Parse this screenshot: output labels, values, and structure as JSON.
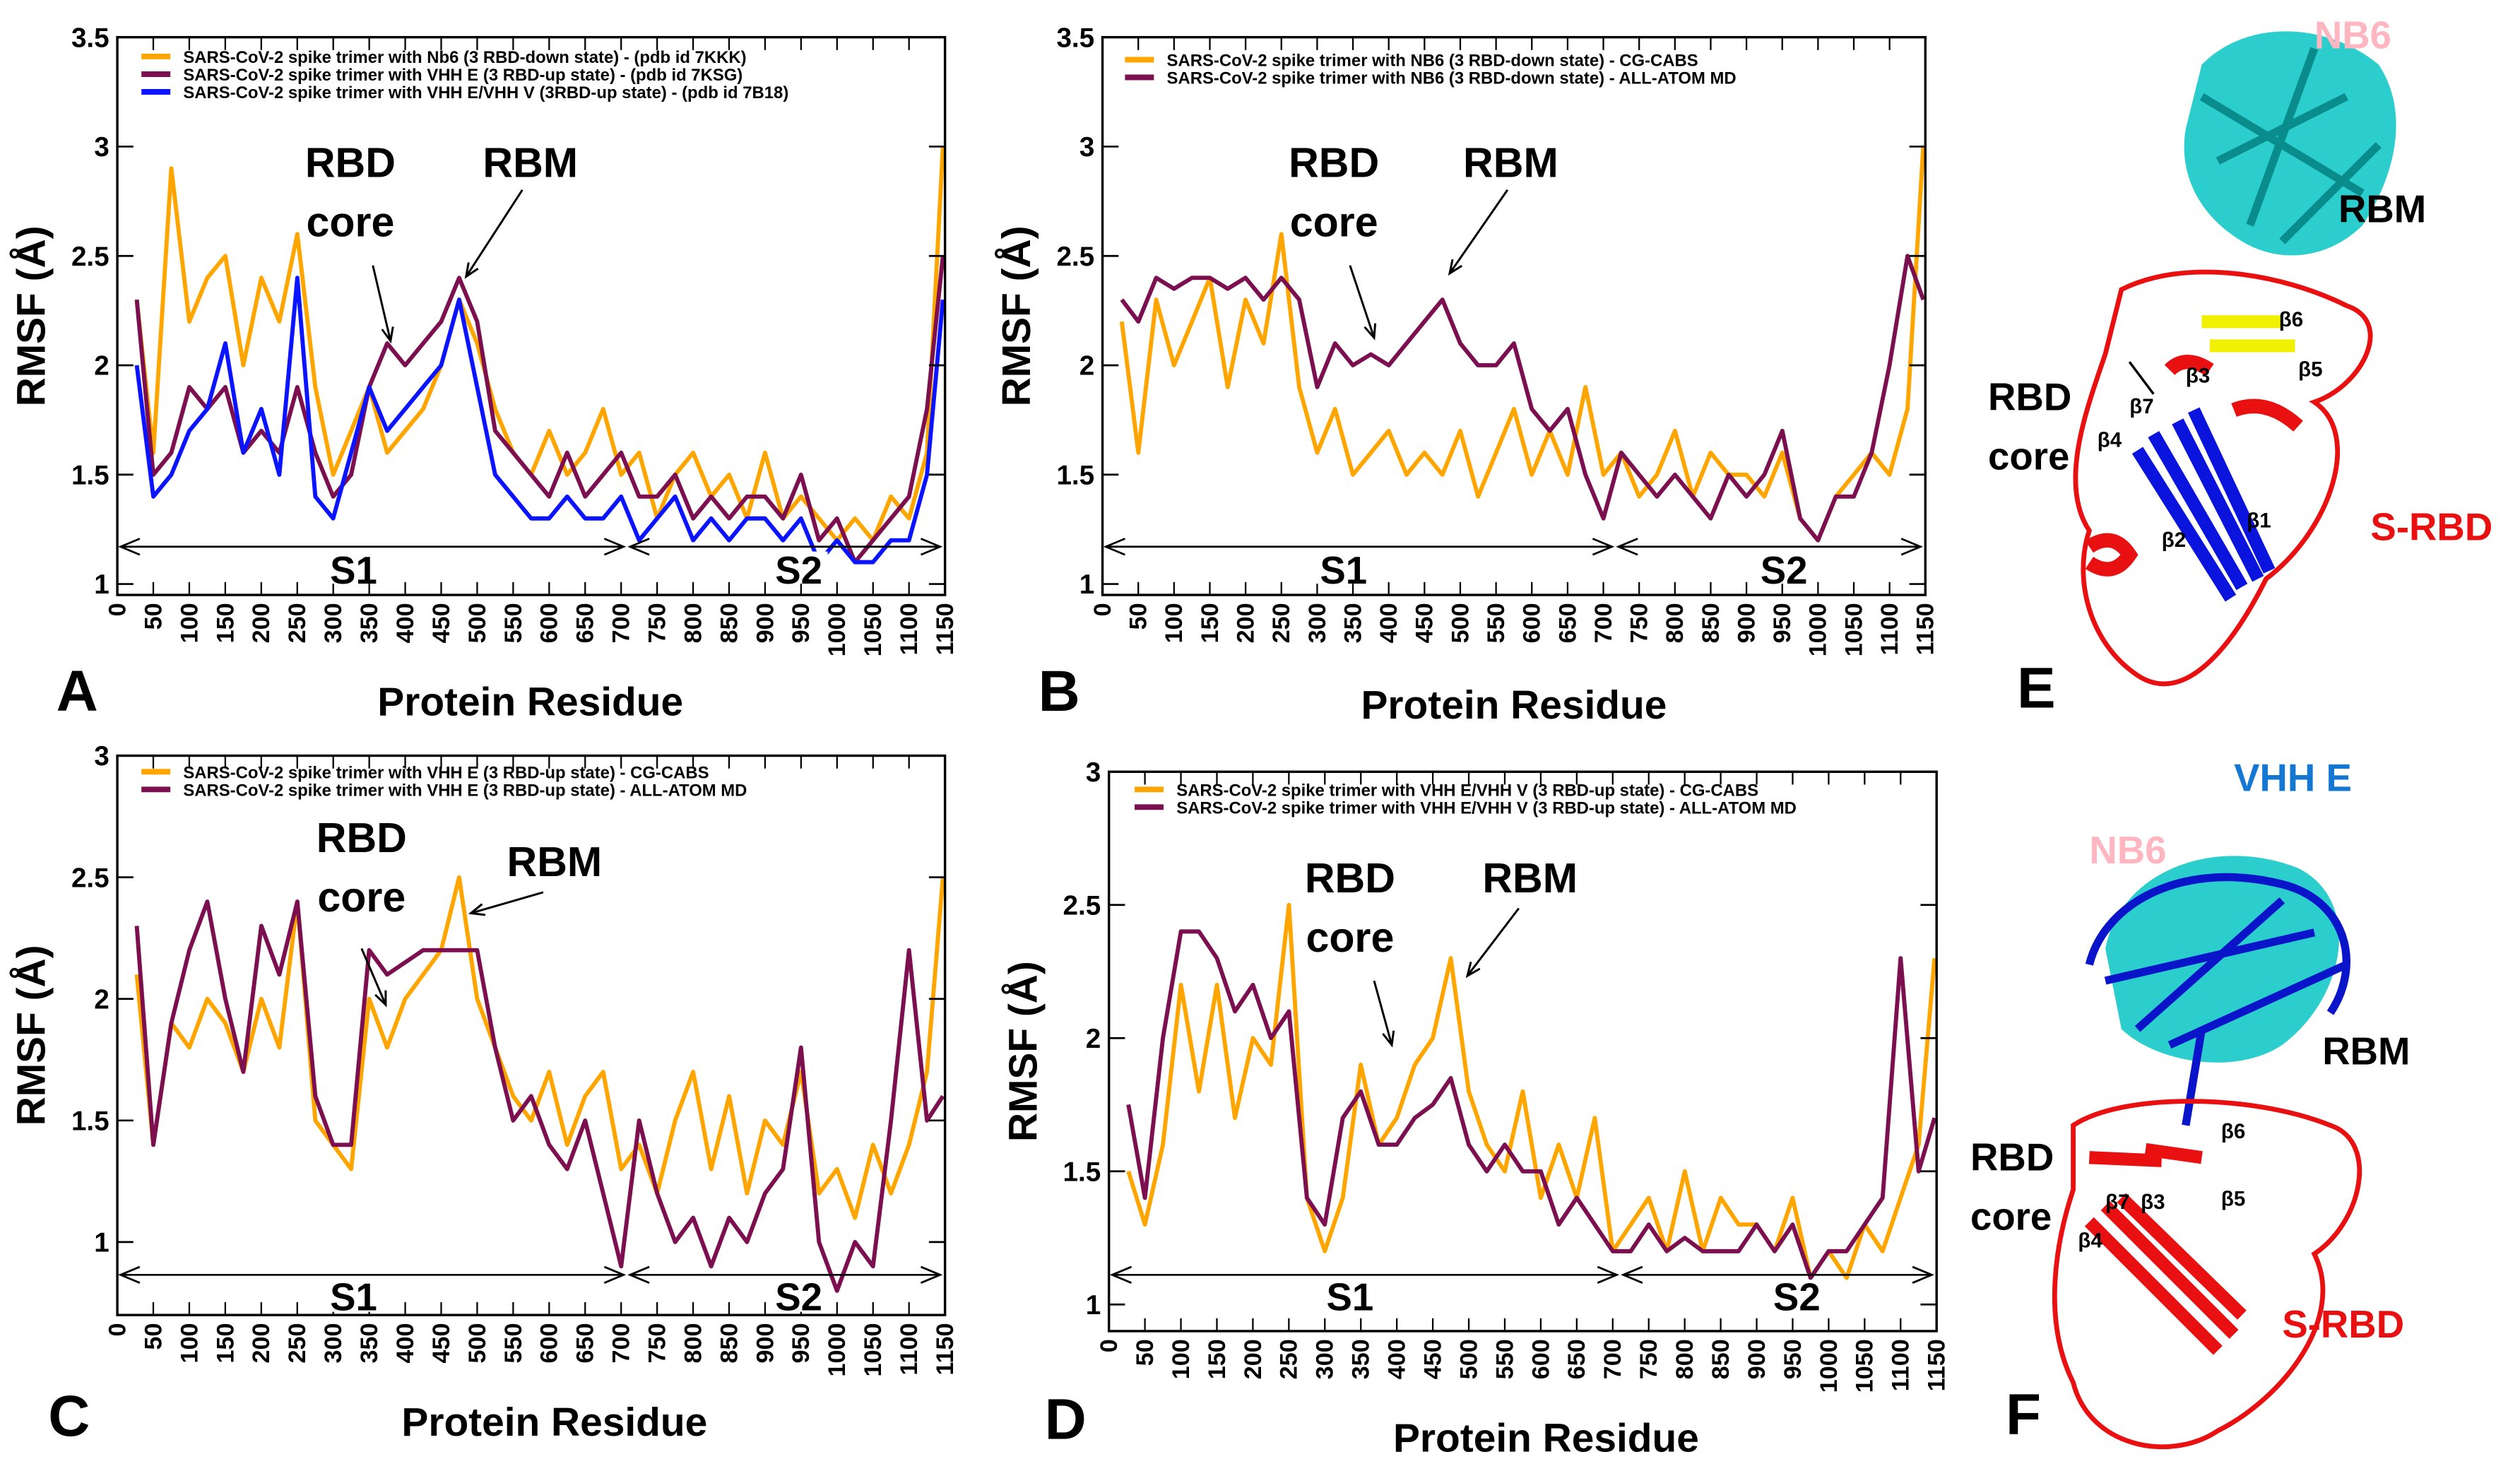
{
  "colors": {
    "orange": "#FFA500",
    "purple": "#7B0F4F",
    "blue": "#0A14FF",
    "red": "#E81010",
    "cyan": "#14C8C8",
    "pink": "#FFB6C1",
    "vhh": "#1478D2",
    "yellow": "#F0F000"
  },
  "chart_data": [
    {
      "panel": "A",
      "type": "line",
      "xlabel": "Protein Residue",
      "ylabel": "RMSF (Å)",
      "xlim": [
        0,
        1150
      ],
      "ylim": [
        0.95,
        3.5
      ],
      "xticks": [
        "0",
        "50",
        "100",
        "150",
        "200",
        "250",
        "300",
        "350",
        "400",
        "450",
        "500",
        "550",
        "600",
        "650",
        "700",
        "750",
        "800",
        "850",
        "900",
        "950",
        "1000",
        "1050",
        "1100",
        "1150"
      ],
      "yticks": [
        "1",
        "1.5",
        "2",
        "2.5",
        "3",
        "3.5"
      ],
      "annotations": {
        "rbd_core_1": "RBD",
        "rbd_core_2": "core",
        "rbm": "RBM",
        "s1": "S1",
        "s2": "S2"
      },
      "x": [
        27,
        50,
        75,
        100,
        125,
        150,
        175,
        200,
        225,
        250,
        275,
        300,
        325,
        350,
        375,
        400,
        425,
        450,
        475,
        500,
        525,
        550,
        575,
        600,
        625,
        650,
        675,
        700,
        725,
        750,
        775,
        800,
        825,
        850,
        875,
        900,
        925,
        950,
        975,
        1000,
        1025,
        1050,
        1075,
        1100,
        1125,
        1147
      ],
      "series": [
        {
          "name": "SARS-CoV-2 spike trimer with Nb6 (3 RBD-down  state) - (pdb id 7KKK)",
          "color": "orange",
          "values": [
            2.3,
            1.6,
            2.9,
            2.2,
            2.4,
            2.5,
            2.0,
            2.4,
            2.2,
            2.6,
            1.9,
            1.5,
            1.7,
            1.9,
            1.6,
            1.7,
            1.8,
            2.0,
            2.3,
            2.1,
            1.8,
            1.6,
            1.5,
            1.7,
            1.5,
            1.6,
            1.8,
            1.5,
            1.6,
            1.3,
            1.5,
            1.6,
            1.4,
            1.5,
            1.3,
            1.6,
            1.3,
            1.4,
            1.3,
            1.2,
            1.3,
            1.2,
            1.4,
            1.3,
            1.6,
            3.0
          ]
        },
        {
          "name": "SARS-CoV-2 spike trimer with VHH E (3 RBD-up state) - (pdb id 7KSG)",
          "color": "purple",
          "values": [
            2.3,
            1.5,
            1.6,
            1.9,
            1.8,
            1.9,
            1.6,
            1.7,
            1.6,
            1.9,
            1.6,
            1.4,
            1.5,
            1.9,
            2.1,
            2.0,
            2.1,
            2.2,
            2.4,
            2.2,
            1.7,
            1.6,
            1.5,
            1.4,
            1.6,
            1.4,
            1.5,
            1.6,
            1.4,
            1.4,
            1.5,
            1.3,
            1.4,
            1.3,
            1.4,
            1.4,
            1.3,
            1.5,
            1.2,
            1.3,
            1.1,
            1.2,
            1.3,
            1.4,
            1.8,
            2.5
          ]
        },
        {
          "name": "SARS-CoV-2 spike trimer with VHH E/VHH V (3RBD-up state) - (pdb id 7B18)",
          "color": "blue",
          "values": [
            2.0,
            1.4,
            1.5,
            1.7,
            1.8,
            2.1,
            1.6,
            1.8,
            1.5,
            2.4,
            1.4,
            1.3,
            1.6,
            1.9,
            1.7,
            1.8,
            1.9,
            2.0,
            2.3,
            1.9,
            1.5,
            1.4,
            1.3,
            1.3,
            1.4,
            1.3,
            1.3,
            1.4,
            1.2,
            1.3,
            1.4,
            1.2,
            1.3,
            1.2,
            1.3,
            1.3,
            1.2,
            1.3,
            1.1,
            1.2,
            1.1,
            1.1,
            1.2,
            1.2,
            1.5,
            2.3
          ]
        }
      ]
    },
    {
      "panel": "B",
      "type": "line",
      "xlabel": "Protein Residue",
      "ylabel": "RMSF (Å)",
      "xlim": [
        0,
        1150
      ],
      "ylim": [
        0.95,
        3.5
      ],
      "xticks": [
        "0",
        "50",
        "100",
        "150",
        "200",
        "250",
        "300",
        "350",
        "400",
        "450",
        "500",
        "550",
        "600",
        "650",
        "700",
        "750",
        "800",
        "850",
        "900",
        "950",
        "1000",
        "1050",
        "1100",
        "1150"
      ],
      "yticks": [
        "1",
        "1.5",
        "2",
        "2.5",
        "3",
        "3.5"
      ],
      "annotations": {
        "rbd_core_1": "RBD",
        "rbd_core_2": "core",
        "rbm": "RBM",
        "s1": "S1",
        "s2": "S2"
      },
      "x": [
        27,
        50,
        75,
        100,
        125,
        150,
        175,
        200,
        225,
        250,
        275,
        300,
        325,
        350,
        375,
        400,
        425,
        450,
        475,
        500,
        525,
        550,
        575,
        600,
        625,
        650,
        675,
        700,
        725,
        750,
        775,
        800,
        825,
        850,
        875,
        900,
        925,
        950,
        975,
        1000,
        1025,
        1050,
        1075,
        1100,
        1125,
        1147
      ],
      "series": [
        {
          "name": "SARS-CoV-2 spike trimer with NB6 (3 RBD-down  state) -  CG-CABS",
          "color": "orange",
          "values": [
            2.2,
            1.6,
            2.3,
            2.0,
            2.2,
            2.4,
            1.9,
            2.3,
            2.1,
            2.6,
            1.9,
            1.6,
            1.8,
            1.5,
            1.6,
            1.7,
            1.5,
            1.6,
            1.5,
            1.7,
            1.4,
            1.6,
            1.8,
            1.5,
            1.7,
            1.5,
            1.9,
            1.5,
            1.6,
            1.4,
            1.5,
            1.7,
            1.4,
            1.6,
            1.5,
            1.5,
            1.4,
            1.6,
            1.3,
            1.2,
            1.4,
            1.5,
            1.6,
            1.5,
            1.8,
            3.0
          ]
        },
        {
          "name": "SARS-CoV-2 spike trimer with NB6 (3 RBD-down state) - ALL-ATOM MD",
          "color": "purple",
          "values": [
            2.3,
            2.2,
            2.4,
            2.35,
            2.4,
            2.4,
            2.35,
            2.4,
            2.3,
            2.4,
            2.3,
            1.9,
            2.1,
            2.0,
            2.05,
            2.0,
            2.1,
            2.2,
            2.3,
            2.1,
            2.0,
            2.0,
            2.1,
            1.8,
            1.7,
            1.8,
            1.5,
            1.3,
            1.6,
            1.5,
            1.4,
            1.5,
            1.4,
            1.3,
            1.5,
            1.4,
            1.5,
            1.7,
            1.3,
            1.2,
            1.4,
            1.4,
            1.6,
            2.0,
            2.5,
            2.3
          ]
        }
      ]
    },
    {
      "panel": "C",
      "type": "line",
      "xlabel": "Protein Residue",
      "ylabel": "RMSF (Å)",
      "xlim": [
        0,
        1150
      ],
      "ylim": [
        0.7,
        3.0
      ],
      "xticks": [
        "0",
        "50",
        "100",
        "150",
        "200",
        "250",
        "300",
        "350",
        "400",
        "450",
        "500",
        "550",
        "600",
        "650",
        "700",
        "750",
        "800",
        "850",
        "900",
        "950",
        "1000",
        "1050",
        "1100",
        "1150"
      ],
      "yticks": [
        "1",
        "1.5",
        "2",
        "2.5",
        "3"
      ],
      "annotations": {
        "rbd_core_1": "RBD",
        "rbd_core_2": "core",
        "rbm": "RBM",
        "s1": "S1",
        "s2": "S2"
      },
      "x": [
        27,
        50,
        75,
        100,
        125,
        150,
        175,
        200,
        225,
        250,
        275,
        300,
        325,
        350,
        375,
        400,
        425,
        450,
        475,
        500,
        525,
        550,
        575,
        600,
        625,
        650,
        675,
        700,
        725,
        750,
        775,
        800,
        825,
        850,
        875,
        900,
        925,
        950,
        975,
        1000,
        1025,
        1050,
        1075,
        1100,
        1125,
        1147
      ],
      "series": [
        {
          "name": "SARS-CoV-2 spike trimer with VHH E (3 RBD-up  state) -  CG-CABS",
          "color": "orange",
          "values": [
            2.1,
            1.4,
            1.9,
            1.8,
            2.0,
            1.9,
            1.7,
            2.0,
            1.8,
            2.4,
            1.5,
            1.4,
            1.3,
            2.0,
            1.8,
            2.0,
            2.1,
            2.2,
            2.5,
            2.0,
            1.8,
            1.6,
            1.5,
            1.7,
            1.4,
            1.6,
            1.7,
            1.3,
            1.4,
            1.2,
            1.5,
            1.7,
            1.3,
            1.6,
            1.2,
            1.5,
            1.4,
            1.7,
            1.2,
            1.3,
            1.1,
            1.4,
            1.2,
            1.4,
            1.7,
            2.5
          ]
        },
        {
          "name": "SARS-CoV-2 spike trimer with VHH E (3 RBD-up state) - ALL-ATOM MD",
          "color": "purple",
          "values": [
            2.3,
            1.4,
            1.9,
            2.2,
            2.4,
            2.0,
            1.7,
            2.3,
            2.1,
            2.4,
            1.6,
            1.4,
            1.4,
            2.2,
            2.1,
            2.15,
            2.2,
            2.2,
            2.2,
            2.2,
            1.8,
            1.5,
            1.6,
            1.4,
            1.3,
            1.5,
            1.2,
            0.9,
            1.5,
            1.2,
            1.0,
            1.1,
            0.9,
            1.1,
            1.0,
            1.2,
            1.3,
            1.8,
            1.0,
            0.8,
            1.0,
            0.9,
            1.5,
            2.2,
            1.5,
            1.6
          ]
        }
      ]
    },
    {
      "panel": "D",
      "type": "line",
      "xlabel": "Protein Residue",
      "ylabel": "RMSF (Å)",
      "xlim": [
        0,
        1150
      ],
      "ylim": [
        0.9,
        3.0
      ],
      "xticks": [
        "0",
        "50",
        "100",
        "150",
        "200",
        "250",
        "300",
        "350",
        "400",
        "450",
        "500",
        "550",
        "600",
        "650",
        "700",
        "750",
        "800",
        "850",
        "900",
        "950",
        "1000",
        "1050",
        "1100",
        "1150"
      ],
      "yticks": [
        "1",
        "1.5",
        "2",
        "2.5",
        "3"
      ],
      "annotations": {
        "rbd_core_1": "RBD",
        "rbd_core_2": "core",
        "rbm": "RBM",
        "s1": "S1",
        "s2": "S2"
      },
      "x": [
        27,
        50,
        75,
        100,
        125,
        150,
        175,
        200,
        225,
        250,
        275,
        300,
        325,
        350,
        375,
        400,
        425,
        450,
        475,
        500,
        525,
        550,
        575,
        600,
        625,
        650,
        675,
        700,
        725,
        750,
        775,
        800,
        825,
        850,
        875,
        900,
        925,
        950,
        975,
        1000,
        1025,
        1050,
        1075,
        1100,
        1125,
        1147
      ],
      "series": [
        {
          "name": "SARS-CoV-2 spike trimer with VHH E/VHH V (3 RBD-up state) -  CG-CABS",
          "color": "orange",
          "values": [
            1.5,
            1.3,
            1.6,
            2.2,
            1.8,
            2.2,
            1.7,
            2.0,
            1.9,
            2.5,
            1.4,
            1.2,
            1.4,
            1.9,
            1.6,
            1.7,
            1.9,
            2.0,
            2.3,
            1.8,
            1.6,
            1.5,
            1.8,
            1.4,
            1.6,
            1.4,
            1.7,
            1.2,
            1.3,
            1.4,
            1.2,
            1.5,
            1.2,
            1.4,
            1.3,
            1.3,
            1.2,
            1.4,
            1.1,
            1.2,
            1.1,
            1.3,
            1.2,
            1.4,
            1.6,
            2.3
          ]
        },
        {
          "name": "SARS-CoV-2 spike trimer with VHH E/VHH V (3 RBD-up state) - ALL-ATOM MD",
          "color": "purple",
          "values": [
            1.75,
            1.4,
            2.0,
            2.4,
            2.4,
            2.3,
            2.1,
            2.2,
            2.0,
            2.1,
            1.4,
            1.3,
            1.7,
            1.8,
            1.6,
            1.6,
            1.7,
            1.75,
            1.85,
            1.6,
            1.5,
            1.6,
            1.5,
            1.5,
            1.3,
            1.4,
            1.3,
            1.2,
            1.2,
            1.3,
            1.2,
            1.25,
            1.2,
            1.2,
            1.2,
            1.3,
            1.2,
            1.3,
            1.1,
            1.2,
            1.2,
            1.3,
            1.4,
            2.3,
            1.5,
            1.7
          ]
        }
      ]
    }
  ],
  "panel_letters": [
    "A",
    "B",
    "C",
    "D",
    "E",
    "F"
  ],
  "structure_e": {
    "nb6": "NB6",
    "rbm": "RBM",
    "rbd_core_1": "RBD",
    "rbd_core_2": "core",
    "s_rbd": "S-RBD",
    "betas": [
      "β6",
      "β5",
      "β7",
      "β3",
      "β4",
      "β2",
      "β1"
    ]
  },
  "structure_f": {
    "vhh_e": "VHH E",
    "nb6": "NB6",
    "rbm": "RBM",
    "rbd_core_1": "RBD",
    "rbd_core_2": "core",
    "s_rbd": "S-RBD",
    "betas": [
      "β6",
      "β7",
      "β3",
      "β5",
      "β4"
    ]
  }
}
